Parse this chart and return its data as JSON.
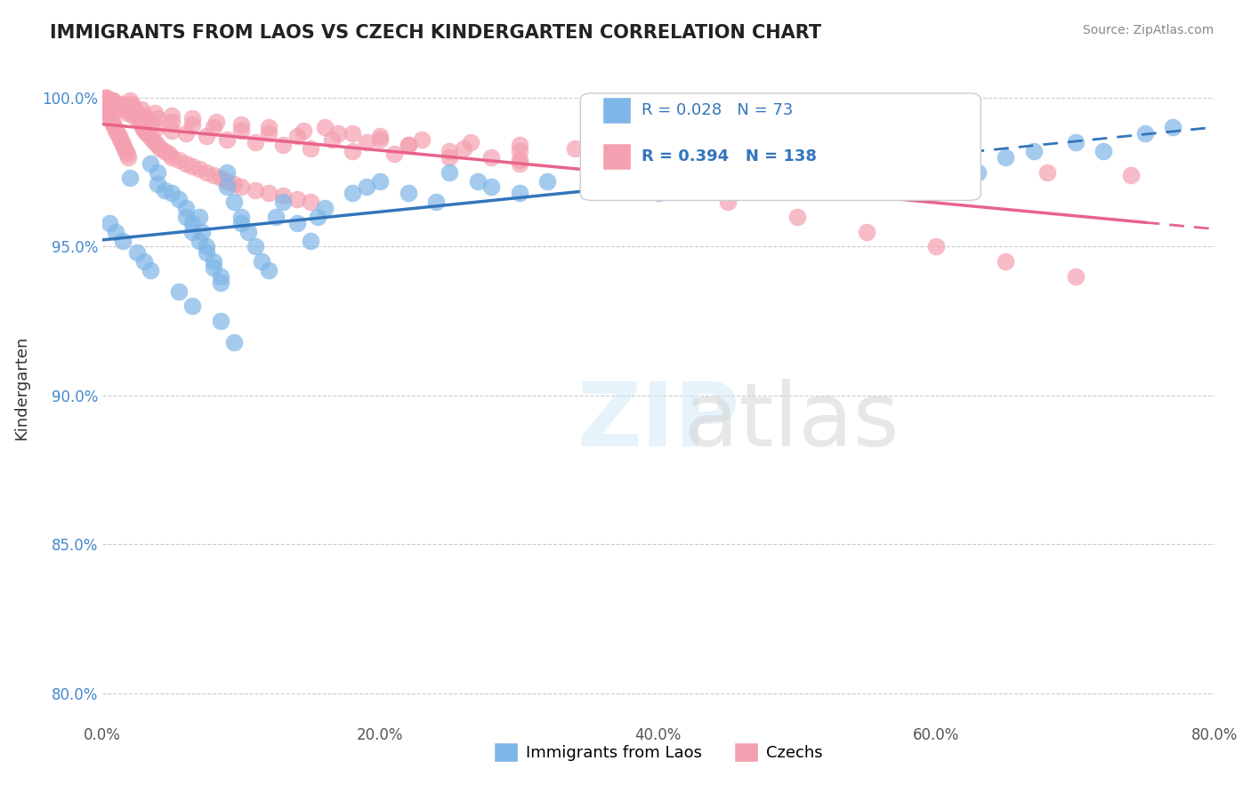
{
  "title": "IMMIGRANTS FROM LAOS VS CZECH KINDERGARTEN CORRELATION CHART",
  "source_text": "Source: ZipAtlas.com",
  "xlabel_bottom": "",
  "ylabel": "Kindergarten",
  "legend_labels": [
    "Immigrants from Laos",
    "Czechs"
  ],
  "legend1_R": "0.028",
  "legend1_N": "73",
  "legend2_R": "0.394",
  "legend2_N": "138",
  "xmin": 0.0,
  "xmax": 0.8,
  "ymin": 0.79,
  "ymax": 1.015,
  "xtick_labels": [
    "0.0%",
    "20.0%",
    "40.0%",
    "60.0%",
    "80.0%"
  ],
  "xtick_values": [
    0.0,
    0.2,
    0.4,
    0.6,
    0.8
  ],
  "ytick_labels": [
    "80.0%",
    "85.0%",
    "90.0%",
    "95.0%",
    "100.0%"
  ],
  "ytick_values": [
    0.8,
    0.85,
    0.9,
    0.95,
    1.0
  ],
  "blue_color": "#7EB6E8",
  "pink_color": "#F4A0B0",
  "blue_line_color": "#3375BB",
  "pink_line_color": "#E8638A",
  "watermark_text": "ZIPatlas",
  "blue_scatter_x": [
    0.02,
    0.035,
    0.04,
    0.04,
    0.045,
    0.05,
    0.055,
    0.06,
    0.06,
    0.065,
    0.065,
    0.07,
    0.07,
    0.072,
    0.075,
    0.075,
    0.08,
    0.08,
    0.085,
    0.085,
    0.09,
    0.09,
    0.095,
    0.1,
    0.1,
    0.105,
    0.11,
    0.115,
    0.12,
    0.125,
    0.13,
    0.14,
    0.15,
    0.155,
    0.16,
    0.18,
    0.19,
    0.2,
    0.22,
    0.24,
    0.25,
    0.27,
    0.28,
    0.3,
    0.32,
    0.35,
    0.37,
    0.4,
    0.42,
    0.45,
    0.48,
    0.5,
    0.52,
    0.55,
    0.58,
    0.6,
    0.63,
    0.65,
    0.67,
    0.7,
    0.72,
    0.75,
    0.77,
    0.005,
    0.01,
    0.015,
    0.025,
    0.03,
    0.035,
    0.055,
    0.065,
    0.085,
    0.095
  ],
  "blue_scatter_y": [
    0.973,
    0.978,
    0.975,
    0.971,
    0.969,
    0.968,
    0.966,
    0.963,
    0.96,
    0.958,
    0.955,
    0.952,
    0.96,
    0.955,
    0.95,
    0.948,
    0.945,
    0.943,
    0.94,
    0.938,
    0.975,
    0.97,
    0.965,
    0.96,
    0.958,
    0.955,
    0.95,
    0.945,
    0.942,
    0.96,
    0.965,
    0.958,
    0.952,
    0.96,
    0.963,
    0.968,
    0.97,
    0.972,
    0.968,
    0.965,
    0.975,
    0.972,
    0.97,
    0.968,
    0.972,
    0.975,
    0.97,
    0.968,
    0.972,
    0.975,
    0.978,
    0.98,
    0.975,
    0.978,
    0.982,
    0.98,
    0.975,
    0.98,
    0.982,
    0.985,
    0.982,
    0.988,
    0.99,
    0.958,
    0.955,
    0.952,
    0.948,
    0.945,
    0.942,
    0.935,
    0.93,
    0.925,
    0.918
  ],
  "pink_scatter_x": [
    0.001,
    0.002,
    0.003,
    0.004,
    0.005,
    0.006,
    0.007,
    0.008,
    0.009,
    0.01,
    0.011,
    0.012,
    0.013,
    0.014,
    0.015,
    0.016,
    0.017,
    0.018,
    0.019,
    0.02,
    0.021,
    0.022,
    0.023,
    0.024,
    0.025,
    0.026,
    0.027,
    0.028,
    0.029,
    0.03,
    0.032,
    0.034,
    0.036,
    0.038,
    0.04,
    0.042,
    0.045,
    0.048,
    0.05,
    0.055,
    0.06,
    0.065,
    0.07,
    0.075,
    0.08,
    0.085,
    0.09,
    0.095,
    0.1,
    0.11,
    0.12,
    0.13,
    0.14,
    0.15,
    0.16,
    0.18,
    0.2,
    0.22,
    0.25,
    0.28,
    0.3,
    0.35,
    0.4,
    0.45,
    0.5,
    0.55,
    0.6,
    0.65,
    0.7,
    0.003,
    0.006,
    0.009,
    0.012,
    0.015,
    0.018,
    0.022,
    0.026,
    0.03,
    0.035,
    0.04,
    0.05,
    0.06,
    0.075,
    0.09,
    0.11,
    0.13,
    0.15,
    0.18,
    0.21,
    0.25,
    0.3,
    0.003,
    0.007,
    0.011,
    0.015,
    0.02,
    0.025,
    0.03,
    0.04,
    0.05,
    0.065,
    0.08,
    0.1,
    0.12,
    0.14,
    0.165,
    0.19,
    0.22,
    0.26,
    0.3,
    0.35,
    0.4,
    0.45,
    0.5,
    0.56,
    0.62,
    0.68,
    0.74,
    0.003,
    0.008,
    0.014,
    0.02,
    0.028,
    0.038,
    0.05,
    0.065,
    0.082,
    0.1,
    0.12,
    0.145,
    0.17,
    0.2,
    0.23,
    0.265,
    0.3,
    0.34,
    0.385,
    0.43
  ],
  "pink_scatter_y": [
    0.998,
    0.997,
    0.996,
    0.995,
    0.994,
    0.993,
    0.992,
    0.991,
    0.99,
    0.989,
    0.988,
    0.987,
    0.986,
    0.985,
    0.984,
    0.983,
    0.982,
    0.981,
    0.98,
    0.999,
    0.998,
    0.997,
    0.996,
    0.995,
    0.994,
    0.993,
    0.992,
    0.991,
    0.99,
    0.989,
    0.988,
    0.987,
    0.986,
    0.985,
    0.984,
    0.983,
    0.982,
    0.981,
    0.98,
    0.979,
    0.978,
    0.977,
    0.976,
    0.975,
    0.974,
    0.973,
    0.972,
    0.971,
    0.97,
    0.969,
    0.968,
    0.967,
    0.966,
    0.965,
    0.99,
    0.988,
    0.986,
    0.984,
    0.982,
    0.98,
    0.978,
    0.975,
    0.97,
    0.965,
    0.96,
    0.955,
    0.95,
    0.945,
    0.94,
    1.0,
    0.999,
    0.998,
    0.997,
    0.996,
    0.995,
    0.994,
    0.993,
    0.992,
    0.991,
    0.99,
    0.989,
    0.988,
    0.987,
    0.986,
    0.985,
    0.984,
    0.983,
    0.982,
    0.981,
    0.98,
    0.979,
    1.0,
    0.999,
    0.998,
    0.997,
    0.996,
    0.995,
    0.994,
    0.993,
    0.992,
    0.991,
    0.99,
    0.989,
    0.988,
    0.987,
    0.986,
    0.985,
    0.984,
    0.983,
    0.982,
    0.981,
    0.98,
    0.979,
    0.978,
    0.977,
    0.976,
    0.975,
    0.974,
    1.0,
    0.999,
    0.998,
    0.997,
    0.996,
    0.995,
    0.994,
    0.993,
    0.992,
    0.991,
    0.99,
    0.989,
    0.988,
    0.987,
    0.986,
    0.985,
    0.984,
    0.983,
    0.982,
    0.981
  ]
}
